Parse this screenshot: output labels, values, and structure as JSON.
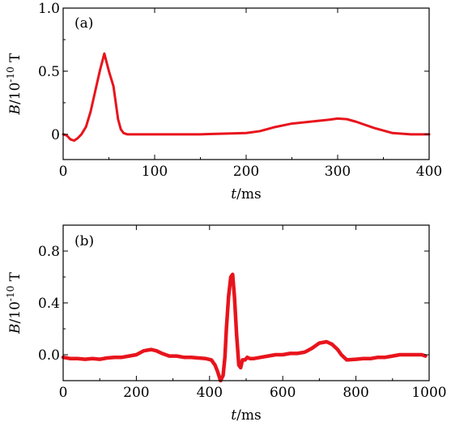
{
  "chart_data": [
    {
      "type": "line",
      "panel_label": "(a)",
      "xlabel": "t/ms",
      "ylabel": "B/10^-10 T",
      "xlim": [
        0,
        400
      ],
      "ylim": [
        -0.2,
        1.0
      ],
      "x_ticks": [
        0,
        100,
        200,
        300,
        400
      ],
      "y_ticks": [
        0,
        0.5,
        1.0
      ],
      "x_tick_labels": [
        "0",
        "100",
        "200",
        "300",
        "400"
      ],
      "y_tick_labels": [
        "0",
        "0.5",
        "1.0"
      ],
      "grid": false,
      "color": "#e8141c",
      "series": [
        {
          "x": [
            0,
            4,
            8,
            12,
            16,
            20,
            25,
            30,
            35,
            40,
            45,
            50,
            55,
            60,
            63,
            66,
            70,
            80,
            100,
            150,
            200,
            215,
            230,
            250,
            270,
            290,
            300,
            310,
            320,
            340,
            360,
            380,
            400
          ],
          "y": [
            0.0,
            -0.01,
            -0.04,
            -0.05,
            -0.03,
            0.0,
            0.06,
            0.18,
            0.34,
            0.5,
            0.64,
            0.5,
            0.38,
            0.12,
            0.04,
            0.01,
            0.0,
            0.0,
            0.0,
            0.0,
            0.01,
            0.025,
            0.055,
            0.085,
            0.1,
            0.115,
            0.125,
            0.12,
            0.1,
            0.05,
            0.01,
            0.0,
            0.0
          ]
        }
      ]
    },
    {
      "type": "line",
      "panel_label": "(b)",
      "xlabel": "t/ms",
      "ylabel": "B/10^-10 T",
      "xlim": [
        0,
        1000
      ],
      "ylim": [
        -0.2,
        1.0
      ],
      "x_ticks": [
        0,
        200,
        400,
        600,
        800,
        1000
      ],
      "y_ticks": [
        0.0,
        0.4,
        0.8
      ],
      "x_tick_labels": [
        "0",
        "200",
        "400",
        "600",
        "800",
        "1000"
      ],
      "y_tick_labels": [
        "0.0",
        "0.4",
        "0.8"
      ],
      "grid": false,
      "color": "#e8141c",
      "series": [
        {
          "x": [
            0,
            20,
            40,
            60,
            80,
            100,
            120,
            140,
            160,
            180,
            200,
            220,
            240,
            255,
            270,
            290,
            310,
            330,
            350,
            370,
            390,
            405,
            415,
            422,
            430,
            437,
            442,
            446,
            452,
            458,
            463,
            468,
            474,
            480,
            485,
            490,
            497,
            503,
            510,
            520,
            540,
            560,
            580,
            600,
            620,
            640,
            660,
            680,
            700,
            720,
            735,
            750,
            760,
            775,
            800,
            820,
            840,
            860,
            880,
            900,
            920,
            940,
            960,
            980,
            990
          ],
          "y": [
            -0.02,
            -0.03,
            -0.03,
            -0.035,
            -0.03,
            -0.035,
            -0.025,
            -0.02,
            -0.02,
            -0.01,
            0.0,
            0.03,
            0.04,
            0.03,
            0.01,
            -0.01,
            -0.01,
            -0.02,
            -0.02,
            -0.025,
            -0.03,
            -0.04,
            -0.08,
            -0.13,
            -0.2,
            -0.16,
            -0.02,
            0.2,
            0.45,
            0.6,
            0.62,
            0.45,
            0.15,
            -0.08,
            -0.1,
            -0.04,
            -0.04,
            -0.02,
            -0.03,
            -0.03,
            -0.02,
            -0.01,
            0.0,
            0.0,
            0.01,
            0.01,
            0.02,
            0.05,
            0.09,
            0.1,
            0.08,
            0.04,
            0.0,
            -0.04,
            -0.035,
            -0.03,
            -0.03,
            -0.02,
            -0.02,
            -0.01,
            0.0,
            0.0,
            0.0,
            0.0,
            -0.01
          ]
        }
      ]
    }
  ]
}
